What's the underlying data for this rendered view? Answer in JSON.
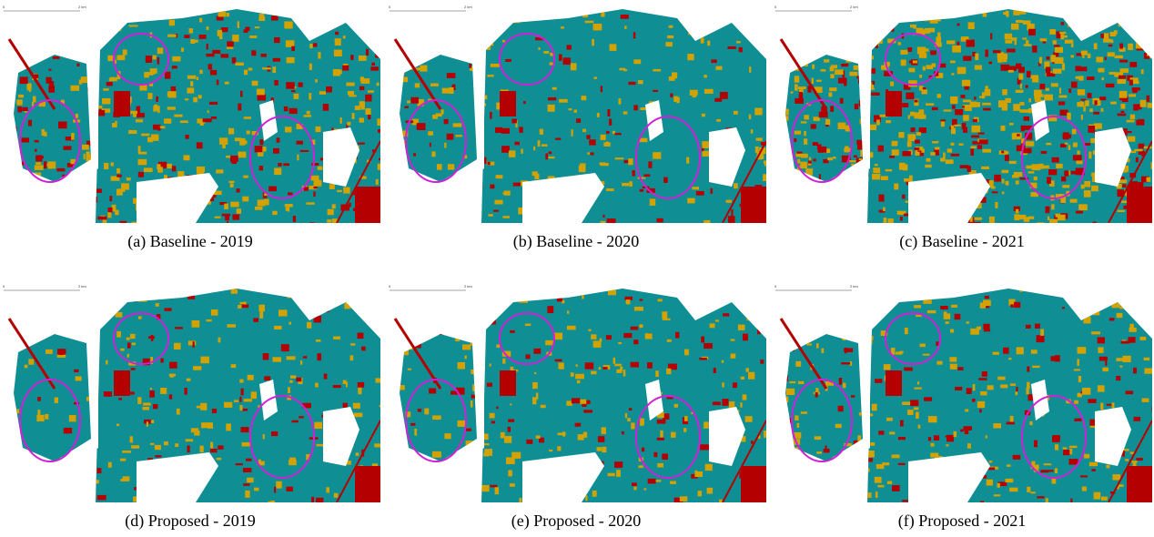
{
  "panels": [
    {
      "caption": "(a) Baseline - 2019",
      "scale": {
        "start": "0",
        "end": "2 km"
      }
    },
    {
      "caption": "(b) Baseline - 2020",
      "scale": {
        "start": "0",
        "end": "2 km"
      }
    },
    {
      "caption": "(c) Baseline - 2021",
      "scale": {
        "start": "0",
        "end": "2 km"
      }
    },
    {
      "caption": "(d) Proposed - 2019",
      "scale": {
        "start": "0",
        "end": "2 km"
      }
    },
    {
      "caption": "(e) Proposed - 2020",
      "scale": {
        "start": "0",
        "end": "2 km"
      }
    },
    {
      "caption": "(f) Proposed - 2021",
      "scale": {
        "start": "0",
        "end": "2 km"
      }
    }
  ]
}
